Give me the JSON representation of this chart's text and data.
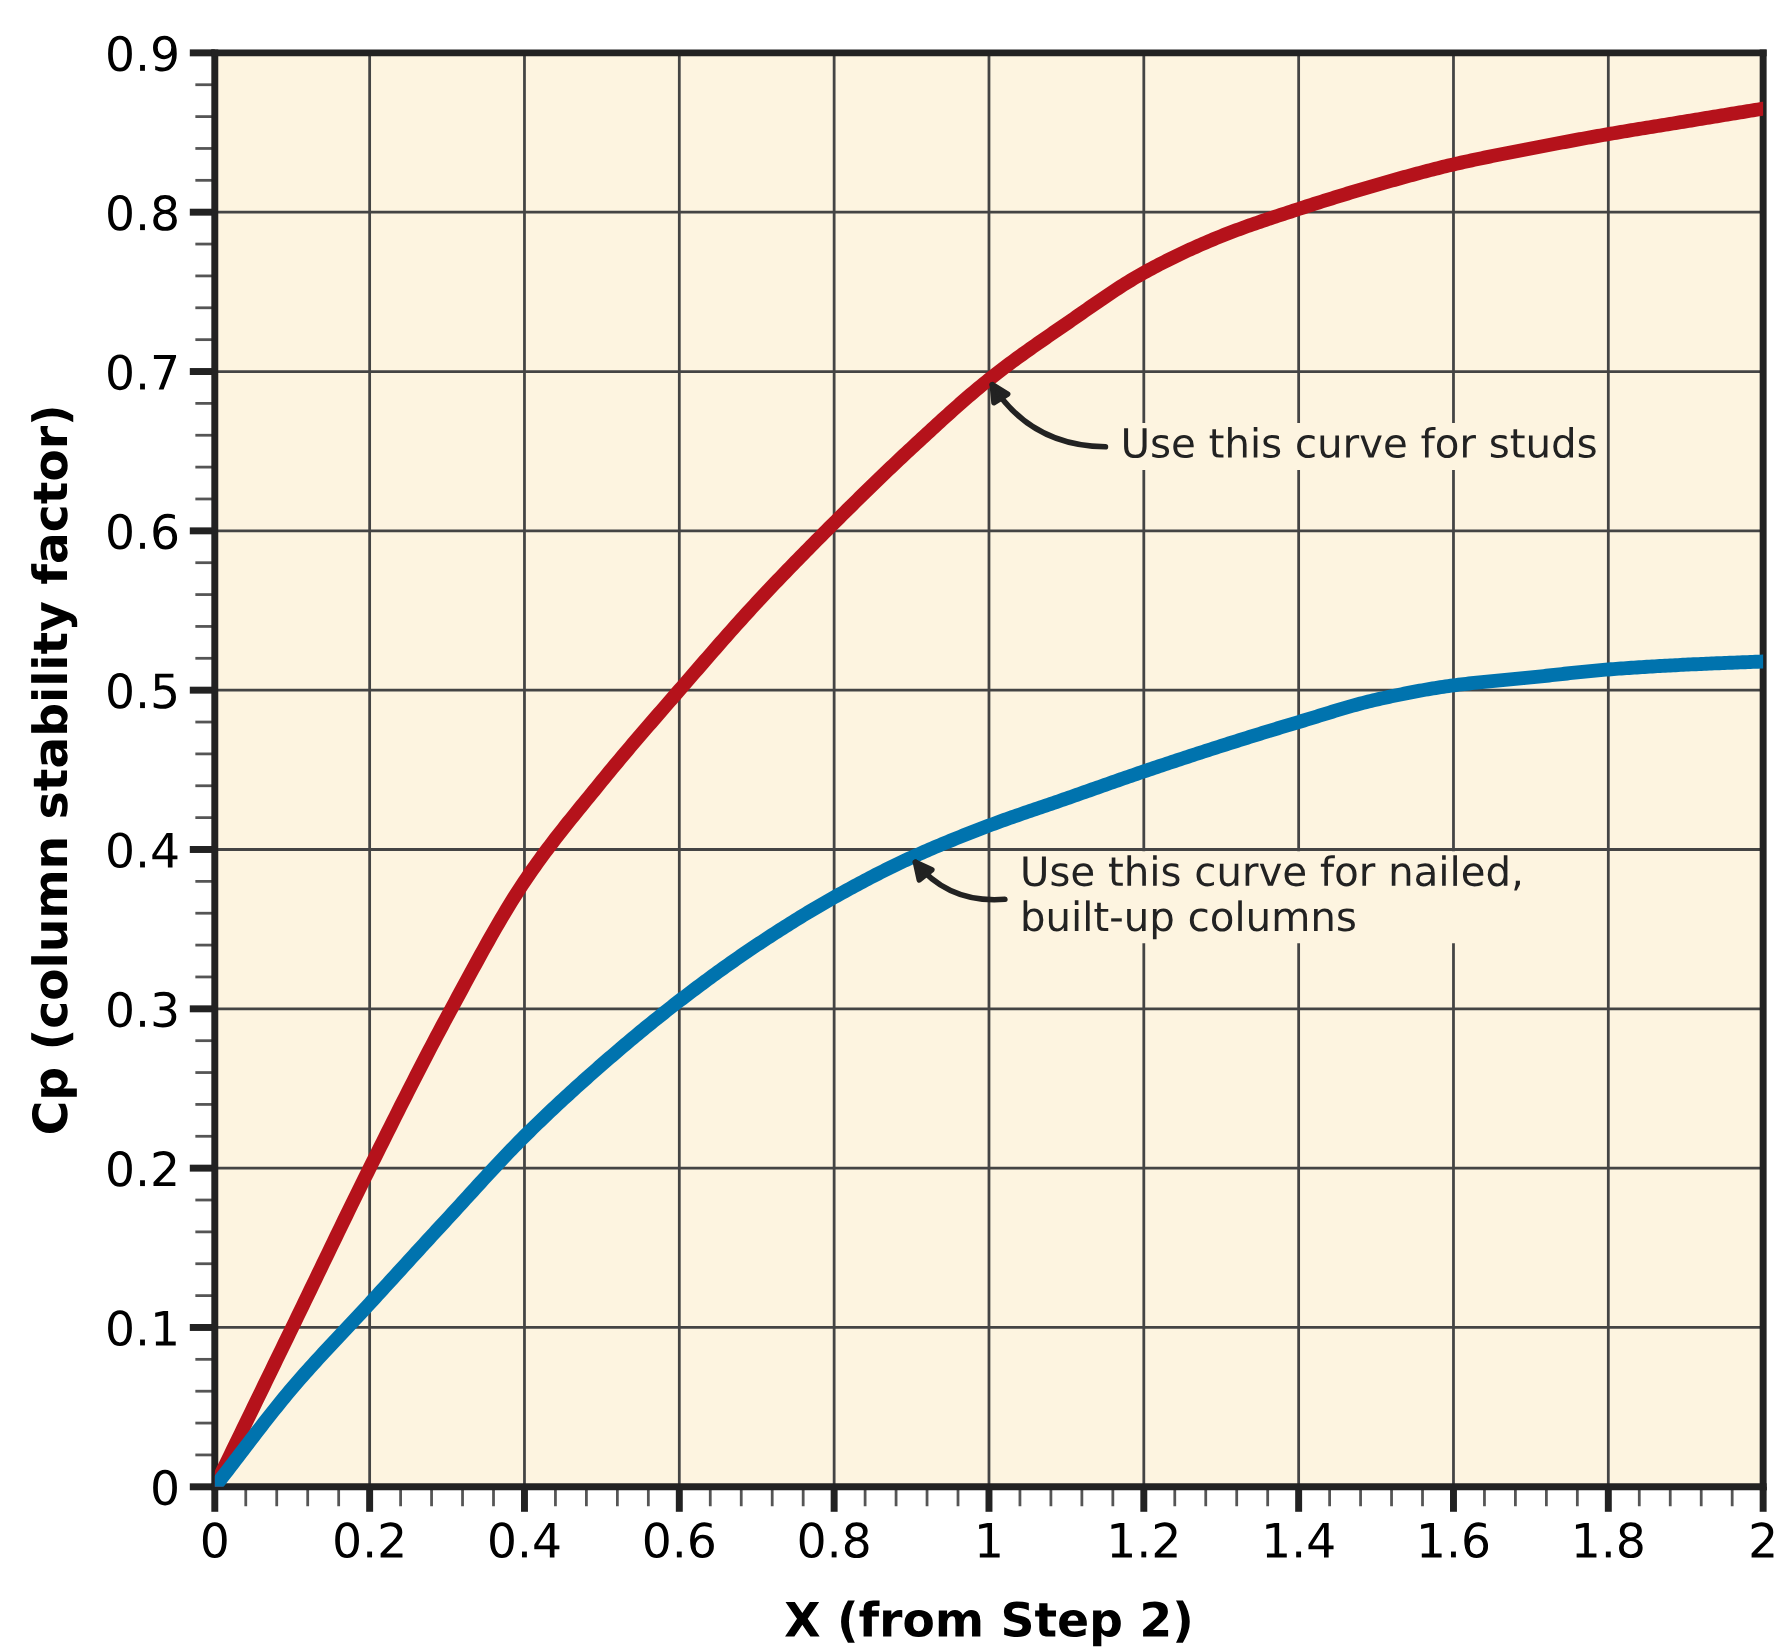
{
  "chart_data": {
    "type": "line",
    "xlabel": "X (from Step 2)",
    "ylabel": "Cp (column stability factor)",
    "x": [
      0,
      0.1,
      0.2,
      0.3,
      0.4,
      0.5,
      0.6,
      0.7,
      0.8,
      0.9,
      1.0,
      1.1,
      1.2,
      1.3,
      1.4,
      1.5,
      1.6,
      1.7,
      1.8,
      1.9,
      2.0
    ],
    "series": [
      {
        "color": "#b5121b",
        "values": [
          0,
          0.1,
          0.2,
          0.295,
          0.38,
          0.443,
          0.5,
          0.555,
          0.605,
          0.652,
          0.695,
          0.73,
          0.762,
          0.785,
          0.802,
          0.817,
          0.83,
          0.84,
          0.849,
          0.857,
          0.865
        ]
      },
      {
        "color": "#0073ae",
        "values": [
          0,
          0.062,
          0.115,
          0.168,
          0.22,
          0.265,
          0.305,
          0.34,
          0.37,
          0.395,
          0.415,
          0.432,
          0.449,
          0.465,
          0.48,
          0.494,
          0.503,
          0.508,
          0.513,
          0.516,
          0.518
        ]
      }
    ],
    "annotations": [
      {
        "text": "Use this curve for studs",
        "x": 1.0,
        "y": 0.695
      },
      {
        "text": "Use this curve for nailed,\nbuilt-up columns",
        "x": 0.9,
        "y": 0.395
      }
    ],
    "xlim": [
      0,
      2
    ],
    "ylim": [
      0,
      0.9
    ],
    "xticks": [
      0,
      {
        "value": 0.04,
        "label": null
      },
      {
        "value": 0.08,
        "label": null
      },
      {
        "value": 0.12,
        "label": null
      },
      {
        "value": 0.16,
        "label": null
      },
      0.2,
      {
        "value": 0.24,
        "label": null
      },
      {
        "value": 0.28,
        "label": null
      },
      {
        "value": 0.32,
        "label": null
      },
      {
        "value": 0.36,
        "label": null
      },
      0.4,
      {
        "value": 0.44,
        "label": null
      },
      {
        "value": 0.48,
        "label": null
      },
      {
        "value": 0.52,
        "label": null
      },
      {
        "value": 0.56,
        "label": null
      },
      0.6,
      {
        "value": 0.64,
        "label": null
      },
      {
        "value": 0.68,
        "label": null
      },
      {
        "value": 0.72,
        "label": null
      },
      {
        "value": 0.76,
        "label": null
      },
      0.8,
      {
        "value": 0.84,
        "label": null
      },
      {
        "value": 0.88,
        "label": null
      },
      {
        "value": 0.92,
        "label": null
      },
      {
        "value": 0.96,
        "label": null
      },
      1,
      {
        "value": 1.04,
        "label": null
      },
      {
        "value": 1.08,
        "label": null
      },
      {
        "value": 1.12,
        "label": null
      },
      {
        "value": 1.16,
        "label": null
      },
      1.2,
      {
        "value": 1.24,
        "label": null
      },
      {
        "value": 1.28,
        "label": null
      },
      {
        "value": 1.32,
        "label": null
      },
      {
        "value": 1.36,
        "label": null
      },
      1.4,
      {
        "value": 1.44,
        "label": null
      },
      {
        "value": 1.48,
        "label": null
      },
      {
        "value": 1.52,
        "label": null
      },
      {
        "value": 1.56,
        "label": null
      },
      1.6,
      {
        "value": 1.64,
        "label": null
      },
      {
        "value": 1.68,
        "label": null
      },
      {
        "value": 1.72,
        "label": null
      },
      {
        "value": 1.76,
        "label": null
      },
      1.8,
      {
        "value": 1.84,
        "label": null
      },
      {
        "value": 1.88,
        "label": null
      },
      {
        "value": 1.92,
        "label": null
      },
      {
        "value": 1.96,
        "label": null
      },
      2
    ],
    "yticks": [
      0,
      {
        "value": 0.02,
        "label": null
      },
      {
        "value": 0.04,
        "label": null
      },
      {
        "value": 0.06,
        "label": null
      },
      {
        "value": 0.08,
        "label": null
      },
      0.1,
      {
        "value": 0.12,
        "label": null
      },
      {
        "value": 0.14,
        "label": null
      },
      {
        "value": 0.16,
        "label": null
      },
      {
        "value": 0.18,
        "label": null
      },
      0.2,
      {
        "value": 0.22,
        "label": null
      },
      {
        "value": 0.24,
        "label": null
      },
      {
        "value": 0.26,
        "label": null
      },
      {
        "value": 0.28,
        "label": null
      },
      0.3,
      {
        "value": 0.32,
        "label": null
      },
      {
        "value": 0.34,
        "label": null
      },
      {
        "value": 0.36,
        "label": null
      },
      {
        "value": 0.38,
        "label": null
      },
      0.4,
      {
        "value": 0.42,
        "label": null
      },
      {
        "value": 0.44,
        "label": null
      },
      {
        "value": 0.46,
        "label": null
      },
      {
        "value": 0.48,
        "label": null
      },
      0.5,
      {
        "value": 0.52,
        "label": null
      },
      {
        "value": 0.54,
        "label": null
      },
      {
        "value": 0.56,
        "label": null
      },
      {
        "value": 0.58,
        "label": null
      },
      0.6,
      {
        "value": 0.62,
        "label": null
      },
      {
        "value": 0.64,
        "label": null
      },
      {
        "value": 0.66,
        "label": null
      },
      {
        "value": 0.68,
        "label": null
      },
      0.7,
      {
        "value": 0.72,
        "label": null
      },
      {
        "value": 0.74,
        "label": null
      },
      {
        "value": 0.76,
        "label": null
      },
      {
        "value": 0.78,
        "label": null
      },
      0.8,
      {
        "value": 0.82,
        "label": null
      },
      {
        "value": 0.84,
        "label": null
      },
      {
        "value": 0.86,
        "label": null
      },
      {
        "value": 0.88,
        "label": null
      },
      0.9
    ],
    "grid": true
  }
}
